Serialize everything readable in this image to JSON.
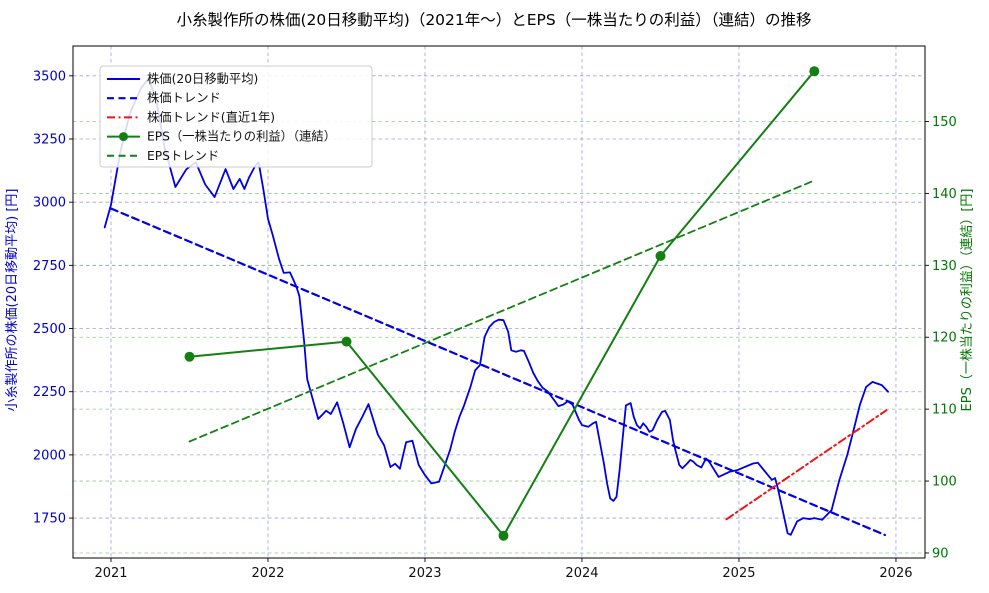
{
  "chart_data": {
    "type": "line",
    "title": "小糸製作所の株価(20日移動平均)（2021年～）とEPS（一株当たりの利益）（連結）の推移",
    "x_axis": {
      "ticks": [
        2021,
        2022,
        2023,
        2024,
        2025,
        2026
      ],
      "range": [
        2020.758,
        2026.185
      ]
    },
    "left_axis": {
      "label": "小糸製作所の株価(20日移動平均) [円]",
      "ticks": [
        1750,
        2000,
        2250,
        2500,
        2750,
        3000,
        3250,
        3500
      ],
      "range": [
        1592,
        3618
      ],
      "color": "#0000cc"
    },
    "right_axis": {
      "label": "EPS（一株当たりの利益）（連結）[円]",
      "ticks": [
        90,
        100,
        110,
        120,
        130,
        140,
        150
      ],
      "range": [
        89.3,
        160.5
      ],
      "color": "#007700"
    },
    "grid": {
      "x_color": "#8888dd",
      "left_color": "#8888dd",
      "right_color": "#77bb77"
    },
    "legend_position": "upper left",
    "series": [
      {
        "name": "株価(20日移動平均)",
        "axis": "left",
        "color": "#0000e6",
        "style": "solid",
        "width": 1.8,
        "marker": false,
        "x": [
          2020.96,
          2021.0,
          2021.06,
          2021.12,
          2021.19,
          2021.24,
          2021.29,
          2021.34,
          2021.41,
          2021.48,
          2021.54,
          2021.6,
          2021.66,
          2021.73,
          2021.78,
          2021.82,
          2021.85,
          2021.88,
          2021.92,
          2021.94,
          2021.97,
          2022.0,
          2022.03,
          2022.07,
          2022.1,
          2022.14,
          2022.18,
          2022.2,
          2022.23,
          2022.25,
          2022.32,
          2022.37,
          2022.4,
          2022.44,
          2022.48,
          2022.52,
          2022.56,
          2022.6,
          2022.64,
          2022.7,
          2022.74,
          2022.78,
          2022.81,
          2022.84,
          2022.88,
          2022.92,
          2022.96,
          2023.0,
          2023.04,
          2023.09,
          2023.13,
          2023.16,
          2023.19,
          2023.22,
          2023.25,
          2023.29,
          2023.32,
          2023.35,
          2023.38,
          2023.41,
          2023.44,
          2023.47,
          2023.5,
          2023.53,
          2023.55,
          2023.58,
          2023.61,
          2023.63,
          2023.66,
          2023.69,
          2023.72,
          2023.75,
          2023.78,
          2023.82,
          2023.85,
          2023.88,
          2023.91,
          2023.94,
          2023.98,
          2024.0,
          2024.04,
          2024.07,
          2024.09,
          2024.11,
          2024.14,
          2024.16,
          2024.18,
          2024.2,
          2024.22,
          2024.24,
          2024.26,
          2024.28,
          2024.31,
          2024.33,
          2024.35,
          2024.37,
          2024.39,
          2024.41,
          2024.43,
          2024.45,
          2024.48,
          2024.51,
          2024.53,
          2024.56,
          2024.58,
          2024.6,
          2024.62,
          2024.64,
          2024.67,
          2024.69,
          2024.71,
          2024.73,
          2024.76,
          2024.79,
          2024.81,
          2024.87,
          2024.94,
          2024.99,
          2025.09,
          2025.12,
          2025.21,
          2025.23,
          2025.25,
          2025.31,
          2025.33,
          2025.37,
          2025.41,
          2025.45,
          2025.48,
          2025.53,
          2025.59,
          2025.64,
          2025.69,
          2025.73,
          2025.77,
          2025.81,
          2025.85,
          2025.91,
          2025.95
        ],
        "y": [
          2900,
          2990,
          3200,
          3350,
          3450,
          3490,
          3400,
          3220,
          3060,
          3130,
          3158,
          3070,
          3020,
          3131,
          3052,
          3092,
          3052,
          3098,
          3145,
          3158,
          3052,
          2934,
          2870,
          2776,
          2720,
          2722,
          2668,
          2628,
          2450,
          2300,
          2142,
          2175,
          2162,
          2208,
          2125,
          2030,
          2102,
          2150,
          2201,
          2080,
          2037,
          1952,
          1965,
          1945,
          2050,
          2056,
          1960,
          1920,
          1887,
          1894,
          1966,
          2020,
          2092,
          2151,
          2197,
          2270,
          2335,
          2355,
          2467,
          2506,
          2526,
          2535,
          2533,
          2487,
          2414,
          2408,
          2414,
          2412,
          2370,
          2324,
          2291,
          2265,
          2252,
          2219,
          2193,
          2199,
          2212,
          2199,
          2140,
          2118,
          2111,
          2125,
          2131,
          2065,
          1966,
          1887,
          1828,
          1818,
          1834,
          1940,
          2071,
          2196,
          2205,
          2150,
          2118,
          2105,
          2125,
          2111,
          2091,
          2098,
          2138,
          2170,
          2174,
          2138,
          2059,
          2006,
          1960,
          1947,
          1966,
          1980,
          1973,
          1960,
          1950,
          1986,
          1973,
          1913,
          1933,
          1940,
          1966,
          1969,
          1901,
          1908,
          1862,
          1690,
          1684,
          1737,
          1750,
          1746,
          1750,
          1743,
          1782,
          1901,
          2000,
          2098,
          2197,
          2269,
          2289,
          2276,
          2250
        ]
      },
      {
        "name": "株価トレンド",
        "axis": "left",
        "color": "#0000e6",
        "style": "dashed",
        "width": 2.2,
        "marker": false,
        "x": [
          2021.0,
          2025.93
        ],
        "y": [
          2975,
          1683
        ]
      },
      {
        "name": "株価トレンド(直近1年)",
        "axis": "left",
        "color": "#f01515",
        "style": "dashdot",
        "width": 2.0,
        "marker": false,
        "x": [
          2024.92,
          2025.94
        ],
        "y": [
          1745,
          2177
        ]
      },
      {
        "name": "EPS（一株当たりの利益）（連結）",
        "axis": "right",
        "color": "#148014",
        "style": "solid",
        "width": 2.0,
        "marker": true,
        "x": [
          2021.5,
          2022.5,
          2023.5,
          2024.5,
          2025.48
        ],
        "y": [
          117.3,
          119.4,
          92.4,
          131.3,
          157.0
        ]
      },
      {
        "name": "EPSトレンド",
        "axis": "right",
        "color": "#148014",
        "style": "dashed",
        "width": 1.8,
        "marker": false,
        "x": [
          2021.5,
          2025.48
        ],
        "y": [
          105.5,
          141.8
        ]
      }
    ]
  }
}
